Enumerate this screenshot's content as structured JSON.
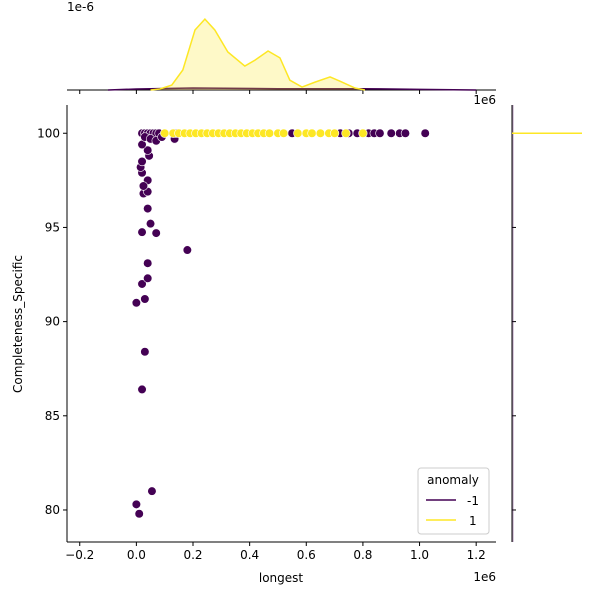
{
  "chart_data": {
    "type": "scatter",
    "xlabel": "longest",
    "ylabel": "Completeness_Specific",
    "x_offset_label": "1e6",
    "top_offset_label": "1e-6",
    "right_offset_label": "1e6",
    "xlim": [
      -0.245,
      1.27
    ],
    "ylim": [
      78.3,
      101.5
    ],
    "xticks": [
      -0.2,
      0.0,
      0.2,
      0.4,
      0.6,
      0.8,
      1.0,
      1.2
    ],
    "xtick_labels": [
      "−0.2",
      "0.0",
      "0.2",
      "0.4",
      "0.6",
      "0.8",
      "1.0",
      "1.2"
    ],
    "yticks": [
      80,
      85,
      90,
      95,
      100
    ],
    "ytick_labels": [
      "80",
      "85",
      "90",
      "95",
      "100"
    ],
    "legend": {
      "title": "anomaly",
      "placement": "lower-right",
      "entries": [
        "-1",
        "1"
      ]
    },
    "colors": {
      "-1": "#440154",
      "1": "#fde725"
    },
    "series": [
      {
        "name": "-1",
        "points": [
          [
            0.0,
            80.3
          ],
          [
            0.01,
            79.8
          ],
          [
            0.055,
            81.0
          ],
          [
            0.0,
            91.0
          ],
          [
            0.03,
            91.2
          ],
          [
            0.02,
            92.0
          ],
          [
            0.04,
            92.3
          ],
          [
            0.04,
            93.1
          ],
          [
            0.18,
            93.8
          ],
          [
            0.02,
            94.75
          ],
          [
            0.07,
            94.7
          ],
          [
            0.05,
            95.2
          ],
          [
            0.04,
            96.0
          ],
          [
            0.025,
            96.8
          ],
          [
            0.04,
            96.9
          ],
          [
            0.04,
            97.5
          ],
          [
            0.025,
            97.2
          ],
          [
            0.02,
            97.9
          ],
          [
            0.015,
            98.2
          ],
          [
            0.02,
            98.5
          ],
          [
            0.045,
            98.8
          ],
          [
            0.04,
            99.1
          ],
          [
            0.02,
            99.4
          ],
          [
            0.135,
            99.7
          ],
          [
            0.02,
            86.4
          ],
          [
            0.03,
            88.4
          ],
          [
            0.02,
            100
          ],
          [
            0.03,
            100
          ],
          [
            0.04,
            100
          ],
          [
            0.05,
            100
          ],
          [
            0.06,
            100
          ],
          [
            0.07,
            100
          ],
          [
            0.08,
            100
          ],
          [
            0.03,
            99.8
          ],
          [
            0.05,
            99.7
          ],
          [
            0.07,
            99.6
          ],
          [
            0.09,
            99.8
          ],
          [
            0.14,
            100
          ],
          [
            0.55,
            100
          ],
          [
            0.72,
            100
          ],
          [
            0.75,
            100
          ],
          [
            0.78,
            100
          ],
          [
            0.82,
            100
          ],
          [
            0.84,
            100
          ],
          [
            0.86,
            100
          ],
          [
            0.9,
            100
          ],
          [
            0.93,
            100
          ],
          [
            0.95,
            100
          ],
          [
            1.02,
            100
          ]
        ]
      },
      {
        "name": "1",
        "points": [
          [
            0.1,
            100
          ],
          [
            0.13,
            100
          ],
          [
            0.15,
            100
          ],
          [
            0.17,
            100
          ],
          [
            0.19,
            100
          ],
          [
            0.21,
            100
          ],
          [
            0.23,
            100
          ],
          [
            0.25,
            100
          ],
          [
            0.27,
            100
          ],
          [
            0.29,
            100
          ],
          [
            0.31,
            100
          ],
          [
            0.33,
            100
          ],
          [
            0.35,
            100
          ],
          [
            0.37,
            100
          ],
          [
            0.39,
            100
          ],
          [
            0.41,
            100
          ],
          [
            0.43,
            100
          ],
          [
            0.45,
            100
          ],
          [
            0.47,
            100
          ],
          [
            0.5,
            100
          ],
          [
            0.52,
            100
          ],
          [
            0.57,
            100
          ],
          [
            0.6,
            100
          ],
          [
            0.62,
            100
          ],
          [
            0.65,
            100
          ],
          [
            0.68,
            100
          ],
          [
            0.7,
            100
          ],
          [
            0.74,
            100
          ],
          [
            0.8,
            100
          ]
        ]
      }
    ],
    "top_kde": {
      "ylim": [
        0,
        2.5
      ],
      "1": [
        [
          0.05,
          0
        ],
        [
          0.083,
          0.03
        ],
        [
          0.125,
          0.15
        ],
        [
          0.164,
          0.61
        ],
        [
          0.207,
          1.83
        ],
        [
          0.242,
          2.16
        ],
        [
          0.277,
          1.83
        ],
        [
          0.323,
          1.16
        ],
        [
          0.383,
          0.73
        ],
        [
          0.419,
          0.91
        ],
        [
          0.465,
          1.19
        ],
        [
          0.507,
          0.98
        ],
        [
          0.542,
          0.3
        ],
        [
          0.585,
          0.09
        ],
        [
          0.631,
          0.24
        ],
        [
          0.684,
          0.4
        ],
        [
          0.719,
          0.27
        ],
        [
          0.772,
          0.06
        ],
        [
          0.807,
          0
        ]
      ],
      "-1": [
        [
          -0.1,
          0
        ],
        [
          0.0,
          0.03
        ],
        [
          0.2,
          0.06
        ],
        [
          0.5,
          0.04
        ],
        [
          0.8,
          0.04
        ],
        [
          1.0,
          0.02
        ],
        [
          1.2,
          0
        ]
      ]
    }
  }
}
